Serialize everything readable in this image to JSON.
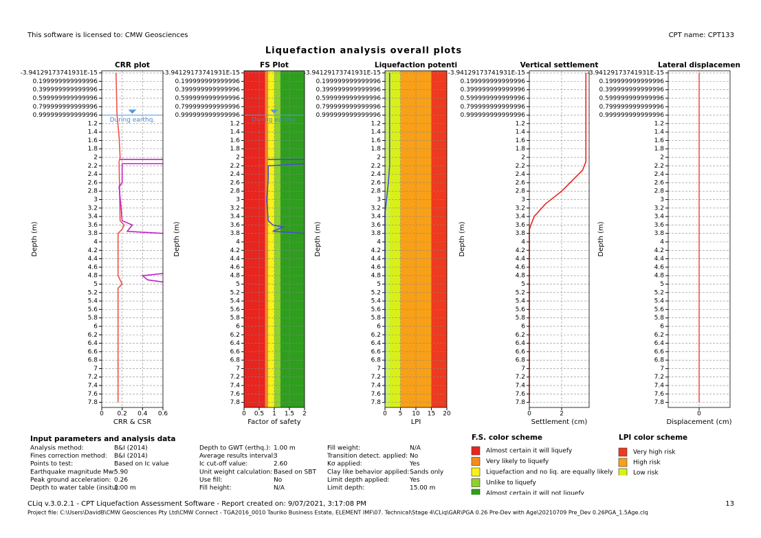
{
  "header": {
    "license": "This software is licensed to: CMW Geosciences",
    "cpt_name": "CPT name: CPT133",
    "title": "Liquefaction analysis overall plots"
  },
  "chart_data": [
    {
      "type": "line",
      "title": "CRR plot",
      "x_label": "CRR & CSR",
      "y_label": "Depth (m)",
      "xlim": [
        0,
        0.6
      ],
      "xticks": [
        0,
        0.2,
        0.4,
        0.6
      ],
      "ylim": [
        -0.05,
        7.92
      ],
      "yticks": [
        {
          "value": -3.94129173741931e-15,
          "label": "-3.94129173741931E-15"
        },
        0.199999999999996,
        0.399999999999996,
        0.599999999999996,
        0.799999999999996,
        0.999999999999996,
        1.2,
        1.4,
        1.6,
        1.8,
        2,
        2.2,
        2.4,
        2.6,
        2.8,
        3,
        3.2,
        3.4,
        3.6,
        3.8,
        4,
        4.2,
        4.4,
        4.6,
        4.8,
        5,
        5.2,
        5.4,
        5.6,
        5.8,
        6,
        6.2,
        6.4,
        6.6,
        6.8,
        7,
        7.2,
        7.4,
        7.6,
        7.8
      ],
      "gwt_depth": 1.0,
      "gwt_label": "During earthq.",
      "series": [
        {
          "color": "#f0504a",
          "depth": [
            0,
            1,
            1.5,
            2,
            2.1,
            3.5,
            3.6,
            3.7,
            3.8,
            4.8,
            5.0,
            5.1,
            7.8
          ],
          "values": [
            0.14,
            0.15,
            0.17,
            0.18,
            0.17,
            0.18,
            0.22,
            0.2,
            0.16,
            0.16,
            0.2,
            0.16,
            0.16
          ]
        },
        {
          "color": "#c020c8",
          "depth": [
            2.05,
            2.05,
            null,
            2.15,
            2.15,
            2.6,
            2.7,
            3.2,
            3.5,
            3.6,
            3.75,
            3.8,
            null,
            4.75,
            4.8,
            4.9,
            4.95
          ],
          "values": [
            0.6,
            0.18,
            null,
            0.6,
            0.2,
            0.2,
            0.17,
            0.19,
            0.2,
            0.3,
            0.25,
            0.6,
            null,
            0.6,
            0.4,
            0.45,
            0.6
          ]
        }
      ]
    },
    {
      "type": "line",
      "title": "FS Plot",
      "x_label": "Factor of safety",
      "y_label": "Depth (m)",
      "xlim": [
        0,
        2
      ],
      "xticks": [
        0,
        0.5,
        1,
        1.5,
        2
      ],
      "ylim": [
        -0.05,
        7.92
      ],
      "yticks": [
        {
          "value": -3.94129173741931e-15,
          "label": "-3.94129173741931E-15"
        },
        0.199999999999996,
        0.399999999999996,
        0.599999999999996,
        0.799999999999996,
        0.999999999999996,
        1.2,
        1.4,
        1.6,
        1.8,
        2,
        2.2,
        2.4,
        2.6,
        2.8,
        3,
        3.2,
        3.4,
        3.6,
        3.8,
        4,
        4.2,
        4.4,
        4.6,
        4.8,
        5,
        5.2,
        5.4,
        5.6,
        5.8,
        6,
        6.2,
        6.4,
        6.6,
        6.8,
        7,
        7.2,
        7.4,
        7.6,
        7.8
      ],
      "gwt_depth": 1.0,
      "gwt_label": "During earthq.",
      "bands": [
        {
          "from": 0,
          "to": 0.7,
          "color": "#e8251f"
        },
        {
          "from": 0.7,
          "to": 0.8,
          "color": "#f58a1f"
        },
        {
          "from": 0.8,
          "to": 1.0,
          "color": "#f7f21a"
        },
        {
          "from": 1.0,
          "to": 1.2,
          "color": "#8fd12a"
        },
        {
          "from": 1.2,
          "to": 2,
          "color": "#2f9e1e"
        }
      ],
      "series": [
        {
          "color": "#4a4ad8",
          "depth": [
            2.05,
            2.05,
            null,
            2.15,
            2.2,
            2.5,
            3.0,
            3.5,
            3.6,
            3.65,
            3.75,
            3.8
          ],
          "values": [
            2,
            0.78,
            null,
            2,
            0.8,
            0.8,
            0.75,
            0.8,
            0.95,
            1.3,
            0.95,
            2
          ]
        }
      ]
    },
    {
      "type": "line",
      "title": "Liquefaction potenti",
      "x_label": "LPI",
      "y_label": "Depth (m)",
      "xlim": [
        0,
        20
      ],
      "xticks": [
        0,
        5,
        10,
        15,
        20
      ],
      "ylim": [
        -0.05,
        7.92
      ],
      "yticks": [
        {
          "value": -3.94129173741931e-15,
          "label": "-3.94129173741931E-15"
        },
        0.199999999999996,
        0.399999999999996,
        0.599999999999996,
        0.799999999999996,
        0.999999999999996,
        1.2,
        1.4,
        1.6,
        1.8,
        2,
        2.2,
        2.4,
        2.6,
        2.8,
        3,
        3.2,
        3.4,
        3.6,
        3.8,
        4,
        4.2,
        4.4,
        4.6,
        4.8,
        5,
        5.2,
        5.4,
        5.6,
        5.8,
        6,
        6.2,
        6.4,
        6.6,
        6.8,
        7,
        7.2,
        7.4,
        7.6,
        7.8
      ],
      "bands": [
        {
          "from": 0,
          "to": 1.5,
          "color": "#c8f060"
        },
        {
          "from": 1.5,
          "to": 5,
          "color": "#d8f01a"
        },
        {
          "from": 5,
          "to": 15,
          "color": "#f8a018"
        },
        {
          "from": 15,
          "to": 20,
          "color": "#ee3a1e"
        }
      ],
      "series": [
        {
          "color": "#4a4ad8",
          "depth": [
            0,
            2.2,
            2.6,
            3.0,
            3.3,
            7.8
          ],
          "values": [
            1.5,
            1.5,
            1.1,
            0.5,
            0,
            0
          ]
        }
      ]
    },
    {
      "type": "line",
      "title": "Vertical settlement",
      "x_label": "Settlement (cm)",
      "y_label": "Depth (m)",
      "xlim": [
        0,
        3.7
      ],
      "xticks": [
        0,
        2
      ],
      "ylim": [
        -0.05,
        7.92
      ],
      "yticks": [
        {
          "value": -3.94129173741931e-15,
          "label": "-3.94129173741931E-15"
        },
        0.199999999999996,
        0.399999999999996,
        0.599999999999996,
        0.799999999999996,
        0.999999999999996,
        1.2,
        1.4,
        1.6,
        1.8,
        2,
        2.2,
        2.4,
        2.6,
        2.8,
        3,
        3.2,
        3.4,
        3.6,
        3.8,
        4,
        4.2,
        4.4,
        4.6,
        4.8,
        5,
        5.2,
        5.4,
        5.6,
        5.8,
        6,
        6.2,
        6.4,
        6.6,
        6.8,
        7,
        7.2,
        7.4,
        7.6,
        7.8
      ],
      "series": [
        {
          "color": "#f02020",
          "depth": [
            0,
            2.1,
            2.3,
            2.8,
            3.1,
            3.4,
            3.7,
            7.8
          ],
          "values": [
            3.5,
            3.5,
            3.3,
            2.0,
            1.0,
            0.3,
            0,
            0
          ]
        }
      ]
    },
    {
      "type": "line",
      "title": "Lateral displacemen",
      "x_label": "Displacement (cm)",
      "y_label": "Depth (m)",
      "xlim": [
        -1,
        1
      ],
      "xticks": [
        0
      ],
      "ylim": [
        -0.05,
        7.92
      ],
      "yticks": [
        {
          "value": -3.94129173741931e-15,
          "label": "-3.94129173741931E-15"
        },
        0.199999999999996,
        0.399999999999996,
        0.599999999999996,
        0.799999999999996,
        0.999999999999996,
        1.2,
        1.4,
        1.6,
        1.8,
        2,
        2.2,
        2.4,
        2.6,
        2.8,
        3,
        3.2,
        3.4,
        3.6,
        3.8,
        4,
        4.2,
        4.4,
        4.6,
        4.8,
        5,
        5.2,
        5.4,
        5.6,
        5.8,
        6,
        6.2,
        6.4,
        6.6,
        6.8,
        7,
        7.2,
        7.4,
        7.6,
        7.8
      ],
      "series": [
        {
          "color": "#f05050",
          "depth": [
            0,
            7.8
          ],
          "values": [
            0,
            0
          ]
        }
      ]
    }
  ],
  "input_parameters": {
    "title": "Input parameters and analysis data",
    "columns": [
      [
        [
          "Analysis method:",
          "B&I (2014)"
        ],
        [
          "Fines correction method:",
          "B&I (2014)"
        ],
        [
          "Points to test:",
          "Based on Ic value"
        ],
        [
          "Earthquake magnitude Mw:",
          "5.90"
        ],
        [
          "Peak ground acceleration:",
          "0.26"
        ],
        [
          "Depth to water table (insitu):",
          "1.00 m"
        ]
      ],
      [
        [
          "Depth to GWT (erthq.):",
          "1.00 m"
        ],
        [
          "Average results interval:",
          "3"
        ],
        [
          "Ic cut-off value:",
          "2.60"
        ],
        [
          "Unit weight calculation:",
          "Based on SBT"
        ],
        [
          "Use fill:",
          "No"
        ],
        [
          "Fill height:",
          "N/A"
        ]
      ],
      [
        [
          "Fill weight:",
          "N/A"
        ],
        [
          "Transition detect. applied:",
          "No"
        ],
        [
          "Kσ applied:",
          "Yes"
        ],
        [
          "Clay like behavior applied:",
          "Sands only"
        ],
        [
          "Limit depth applied:",
          "Yes"
        ],
        [
          "Limit depth:",
          "15.00 m"
        ]
      ]
    ]
  },
  "fs_color_scheme": {
    "title": "F.S. color scheme",
    "items": [
      {
        "label": "Almost certain it will liquefy",
        "color": "#e8251f"
      },
      {
        "label": "Very likely to liquefy",
        "color": "#f58a1f"
      },
      {
        "label": "Liquefaction and no liq. are equally likely",
        "color": "#f7f21a"
      },
      {
        "label": "Unlike to liquefy",
        "color": "#8fd12a"
      },
      {
        "label": "Almost certain it will not liquefy",
        "color": "#2f9e1e"
      }
    ]
  },
  "lpi_color_scheme": {
    "title": "LPI color scheme",
    "items": [
      {
        "label": "Very high risk",
        "color": "#ee3a1e"
      },
      {
        "label": "High risk",
        "color": "#f8a018"
      },
      {
        "label": "Low risk",
        "color": "#d8f01a"
      }
    ]
  },
  "footer": {
    "software": "CLiq v.3.0.2.1 - CPT Liquefaction Assessment Software - Report created on: 9/07/2021, 3:17:08 PM",
    "page": "13",
    "project_file": "Project file: C:\\Users\\DavidB\\CMW Geosciences Pty Ltd\\CMW Connect - TGA2016_0010 Tauriko Business Estate, ELEMENT IMF\\07. Technical\\Stage 4\\CLiq\\GAR\\PGA 0.26 Pre-Dev with Age\\20210709 Pre_Dev 0.26PGA_1.5Age.clq"
  }
}
